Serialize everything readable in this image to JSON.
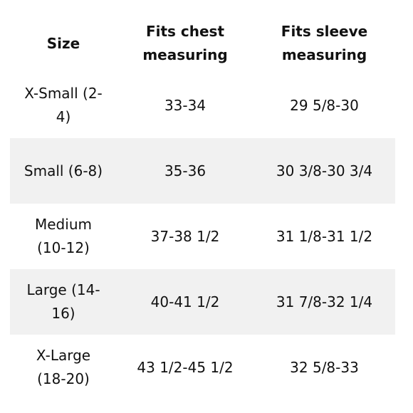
{
  "table": {
    "header": [
      "Size",
      "Fits chest measuring",
      "Fits sleeve measuring"
    ],
    "rows": [
      [
        "X-Small (2-4)",
        "33-34",
        "29 5/8-30"
      ],
      [
        "Small (6-8)",
        "35-36",
        "30 3/8-30 3/4"
      ],
      [
        "Medium (10-12)",
        "37-38 1/2",
        "31 1/8-31 1/2"
      ],
      [
        "Large (14-16)",
        "40-41 1/2",
        "31 7/8-32 1/4"
      ],
      [
        "X-Large (18-20)",
        "43 1/2-45 1/2",
        "32 5/8-33"
      ]
    ]
  }
}
